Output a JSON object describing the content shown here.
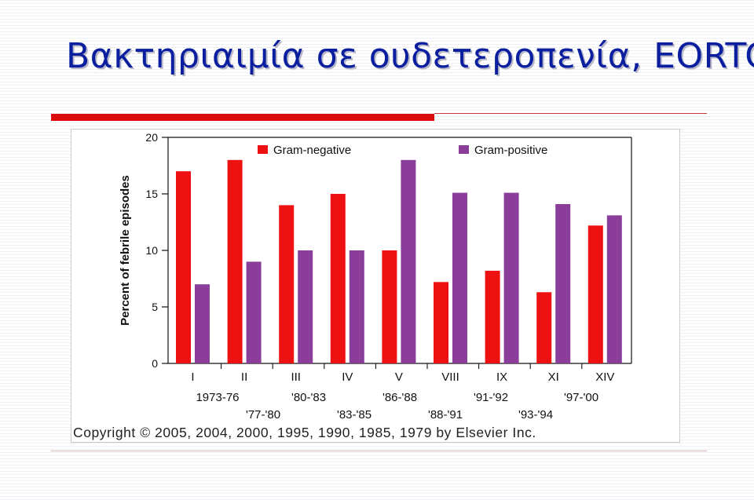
{
  "slide": {
    "title": "Βακτηριαιμία σε ουδετεροπενία, EORTC"
  },
  "colors": {
    "title": "#0a1ea0",
    "accent_rule": "#dd0c0c",
    "gram_negative": "#ee1111",
    "gram_positive": "#8a3e9a"
  },
  "chart_data": {
    "type": "bar",
    "ylabel": "Percent of febrile episodes",
    "xlabel": "",
    "ylim": [
      0,
      20
    ],
    "yticks": [
      0,
      5,
      10,
      15,
      20
    ],
    "grid": false,
    "legend_position": "top",
    "categories": [
      "I",
      "II",
      "III",
      "IV",
      "V",
      "VIII",
      "IX",
      "XI",
      "XIV"
    ],
    "period_labels_row1": [
      "1973-76",
      "'80-'83",
      "'86-'88",
      "'91-'92",
      "'97-'00"
    ],
    "period_labels_row2": [
      "'77-'80",
      "'83-'85",
      "'88-'91",
      "'93-'94"
    ],
    "series": [
      {
        "name": "Gram-negative",
        "values": [
          17,
          18,
          14,
          15,
          10,
          7.2,
          8.2,
          6.3,
          12.2
        ]
      },
      {
        "name": "Gram-positive",
        "values": [
          7,
          9,
          10,
          10,
          18,
          15.1,
          15.1,
          14.1,
          13.1
        ]
      }
    ],
    "copyright": "Copyright © 2005, 2004, 2000, 1995, 1990, 1985, 1979 by Elsevier Inc."
  }
}
